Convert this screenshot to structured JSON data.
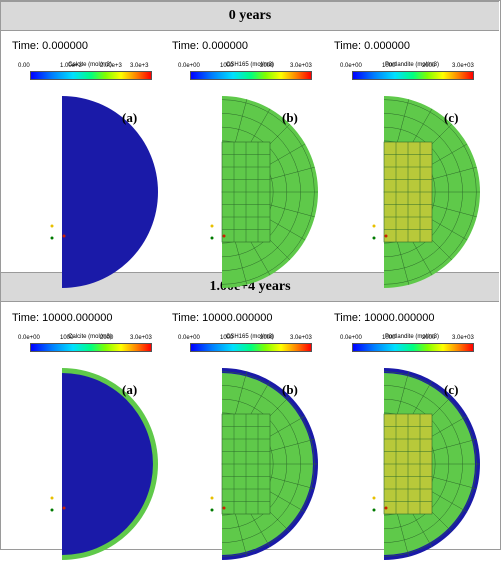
{
  "sections": [
    {
      "header": "0 years",
      "panels": [
        {
          "time": "Time: 0.000000",
          "cb_title": "Calcite (mol/m3)",
          "ticks": [
            "0.00",
            "1.00e+3",
            "2.00e+3",
            "3.0e+3"
          ],
          "label": "(a)",
          "fill": "#1a1aa8",
          "core": "none",
          "rim": "none"
        },
        {
          "time": "Time: 0.000000",
          "cb_title": "CSH165 (mol/m3)",
          "ticks": [
            "0.0e+00",
            "1000",
            "2000",
            "3.0e+03"
          ],
          "label": "(b)",
          "fill": "#5fc94a",
          "core": "#5fc94a",
          "rim": "none"
        },
        {
          "time": "Time: 0.000000",
          "cb_title": "Portlandite (mol/m3)",
          "ticks": [
            "0.0e+00",
            "1000",
            "2000",
            "3.0e+03"
          ],
          "label": "(c)",
          "fill": "#5fc94a",
          "core": "#b8c93a",
          "rim": "none"
        }
      ]
    },
    {
      "header": "1.00e+4 years",
      "panels": [
        {
          "time": "Time: 10000.000000",
          "cb_title": "Calcite (mol/m3)",
          "ticks": [
            "0.0e+00",
            "1000",
            "2000",
            "3.0e+03"
          ],
          "label": "(a)",
          "fill": "#1a1aa8",
          "core": "none",
          "rim": "#5fc94a"
        },
        {
          "time": "Time: 10000.000000",
          "cb_title": "CSH165 (mol/m3)",
          "ticks": [
            "0.0e+00",
            "1000",
            "2000",
            "3.0e+03"
          ],
          "label": "(b)",
          "fill": "#5fc94a",
          "core": "#5fc94a",
          "rim": "#1a1aa8"
        },
        {
          "time": "Time: 10000.000000",
          "cb_title": "Portlandite (mol/m3)",
          "ticks": [
            "0.0e+00",
            "1000",
            "2000",
            "3.0e+03"
          ],
          "label": "(c)",
          "fill": "#5fc94a",
          "core": "#b8c93a",
          "rim": "#1a1aa8"
        }
      ]
    }
  ]
}
